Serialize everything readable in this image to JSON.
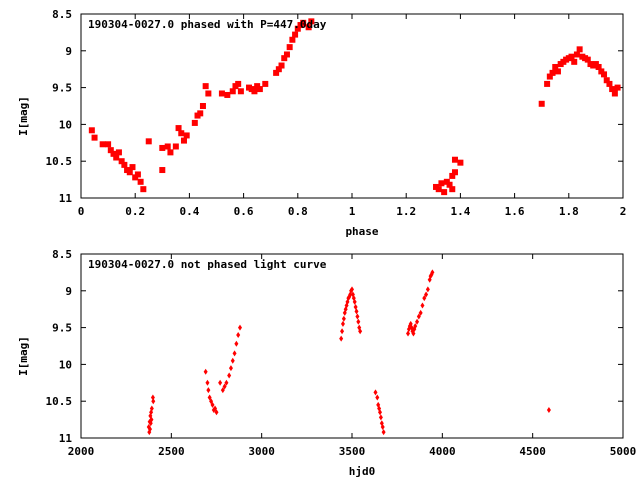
{
  "chart_data": [
    {
      "type": "scatter",
      "title": "190304-0027.0 phased with P=447.0day",
      "xlabel": "phase",
      "ylabel": "I[mag]",
      "xlim": [
        0,
        2
      ],
      "ylim": [
        11,
        8.5
      ],
      "y_inverted": true,
      "x_ticks": [
        "0",
        "0.2",
        "0.4",
        "0.6",
        "0.8",
        "1",
        "1.2",
        "1.4",
        "1.6",
        "1.8",
        "2"
      ],
      "y_ticks": [
        "8.5",
        "9",
        "9.5",
        "10",
        "10.5",
        "11"
      ],
      "grid": false,
      "marker_color": "#ff0000",
      "marker": "square",
      "series": [
        {
          "points": [
            [
              0.04,
              10.08
            ],
            [
              0.05,
              10.18
            ],
            [
              0.08,
              10.27
            ],
            [
              0.1,
              10.27
            ],
            [
              0.11,
              10.35
            ],
            [
              0.12,
              10.4
            ],
            [
              0.13,
              10.45
            ],
            [
              0.14,
              10.38
            ],
            [
              0.15,
              10.5
            ],
            [
              0.16,
              10.55
            ],
            [
              0.17,
              10.62
            ],
            [
              0.18,
              10.65
            ],
            [
              0.19,
              10.58
            ],
            [
              0.2,
              10.72
            ],
            [
              0.21,
              10.68
            ],
            [
              0.22,
              10.78
            ],
            [
              0.23,
              10.88
            ],
            [
              0.25,
              10.23
            ],
            [
              0.3,
              10.62
            ],
            [
              0.3,
              10.32
            ],
            [
              0.32,
              10.3
            ],
            [
              0.33,
              10.38
            ],
            [
              0.35,
              10.3
            ],
            [
              0.36,
              10.05
            ],
            [
              0.37,
              10.12
            ],
            [
              0.38,
              10.22
            ],
            [
              0.39,
              10.15
            ],
            [
              0.42,
              9.98
            ],
            [
              0.43,
              9.88
            ],
            [
              0.44,
              9.85
            ],
            [
              0.45,
              9.75
            ],
            [
              0.46,
              9.48
            ],
            [
              0.47,
              9.58
            ],
            [
              0.52,
              9.58
            ],
            [
              0.54,
              9.6
            ],
            [
              0.56,
              9.55
            ],
            [
              0.57,
              9.48
            ],
            [
              0.58,
              9.45
            ],
            [
              0.59,
              9.55
            ],
            [
              0.62,
              9.5
            ],
            [
              0.63,
              9.52
            ],
            [
              0.64,
              9.55
            ],
            [
              0.65,
              9.48
            ],
            [
              0.66,
              9.52
            ],
            [
              0.68,
              9.45
            ],
            [
              0.72,
              9.3
            ],
            [
              0.73,
              9.25
            ],
            [
              0.74,
              9.2
            ],
            [
              0.75,
              9.1
            ],
            [
              0.76,
              9.05
            ],
            [
              0.77,
              8.95
            ],
            [
              0.78,
              8.85
            ],
            [
              0.79,
              8.78
            ],
            [
              0.8,
              8.7
            ],
            [
              0.81,
              8.65
            ],
            [
              0.82,
              8.62
            ],
            [
              0.84,
              8.68
            ],
            [
              0.85,
              8.6
            ],
            [
              1.31,
              10.85
            ],
            [
              1.32,
              10.88
            ],
            [
              1.33,
              10.8
            ],
            [
              1.34,
              10.92
            ],
            [
              1.35,
              10.78
            ],
            [
              1.36,
              10.82
            ],
            [
              1.37,
              10.7
            ],
            [
              1.37,
              10.88
            ],
            [
              1.38,
              10.65
            ],
            [
              1.38,
              10.48
            ],
            [
              1.4,
              10.52
            ],
            [
              1.7,
              9.72
            ],
            [
              1.72,
              9.45
            ],
            [
              1.73,
              9.35
            ],
            [
              1.74,
              9.3
            ],
            [
              1.75,
              9.22
            ],
            [
              1.76,
              9.28
            ],
            [
              1.77,
              9.18
            ],
            [
              1.78,
              9.15
            ],
            [
              1.79,
              9.12
            ],
            [
              1.8,
              9.1
            ],
            [
              1.81,
              9.08
            ],
            [
              1.82,
              9.15
            ],
            [
              1.83,
              9.05
            ],
            [
              1.84,
              8.98
            ],
            [
              1.85,
              9.08
            ],
            [
              1.86,
              9.1
            ],
            [
              1.87,
              9.12
            ],
            [
              1.88,
              9.18
            ],
            [
              1.89,
              9.2
            ],
            [
              1.9,
              9.18
            ],
            [
              1.91,
              9.22
            ],
            [
              1.92,
              9.28
            ],
            [
              1.93,
              9.32
            ],
            [
              1.94,
              9.4
            ],
            [
              1.95,
              9.45
            ],
            [
              1.96,
              9.52
            ],
            [
              1.97,
              9.58
            ],
            [
              1.98,
              9.5
            ]
          ]
        }
      ]
    },
    {
      "type": "scatter",
      "title": "190304-0027.0 not phased light curve",
      "xlabel": "hjd0",
      "ylabel": "I[mag]",
      "xlim": [
        2000,
        5000
      ],
      "ylim": [
        11,
        8.5
      ],
      "y_inverted": true,
      "x_ticks": [
        "2000",
        "2500",
        "3000",
        "3500",
        "4000",
        "4500",
        "5000"
      ],
      "y_ticks": [
        "8.5",
        "9",
        "9.5",
        "10",
        "10.5",
        "11"
      ],
      "grid": false,
      "marker_color": "#ff0000",
      "marker": "diamond",
      "series": [
        {
          "points": [
            [
              2375,
              10.85
            ],
            [
              2378,
              10.92
            ],
            [
              2380,
              10.78
            ],
            [
              2382,
              10.88
            ],
            [
              2384,
              10.7
            ],
            [
              2386,
              10.8
            ],
            [
              2388,
              10.65
            ],
            [
              2390,
              10.75
            ],
            [
              2392,
              10.6
            ],
            [
              2398,
              10.45
            ],
            [
              2400,
              10.5
            ],
            [
              2690,
              10.1
            ],
            [
              2700,
              10.25
            ],
            [
              2705,
              10.35
            ],
            [
              2712,
              10.45
            ],
            [
              2720,
              10.5
            ],
            [
              2728,
              10.55
            ],
            [
              2735,
              10.62
            ],
            [
              2742,
              10.6
            ],
            [
              2750,
              10.65
            ],
            [
              2770,
              10.25
            ],
            [
              2785,
              10.35
            ],
            [
              2795,
              10.3
            ],
            [
              2805,
              10.25
            ],
            [
              2820,
              10.15
            ],
            [
              2830,
              10.05
            ],
            [
              2840,
              9.95
            ],
            [
              2850,
              9.85
            ],
            [
              2860,
              9.72
            ],
            [
              2870,
              9.6
            ],
            [
              2880,
              9.5
            ],
            [
              3440,
              9.65
            ],
            [
              3445,
              9.55
            ],
            [
              3450,
              9.45
            ],
            [
              3455,
              9.38
            ],
            [
              3460,
              9.3
            ],
            [
              3465,
              9.25
            ],
            [
              3470,
              9.2
            ],
            [
              3475,
              9.15
            ],
            [
              3480,
              9.1
            ],
            [
              3485,
              9.08
            ],
            [
              3490,
              9.05
            ],
            [
              3495,
              9.0
            ],
            [
              3500,
              8.98
            ],
            [
              3505,
              9.05
            ],
            [
              3510,
              9.1
            ],
            [
              3515,
              9.15
            ],
            [
              3520,
              9.22
            ],
            [
              3525,
              9.28
            ],
            [
              3530,
              9.35
            ],
            [
              3535,
              9.42
            ],
            [
              3540,
              9.5
            ],
            [
              3545,
              9.55
            ],
            [
              3630,
              10.38
            ],
            [
              3640,
              10.45
            ],
            [
              3645,
              10.55
            ],
            [
              3650,
              10.6
            ],
            [
              3655,
              10.65
            ],
            [
              3660,
              10.72
            ],
            [
              3665,
              10.8
            ],
            [
              3670,
              10.85
            ],
            [
              3675,
              10.92
            ],
            [
              3810,
              9.58
            ],
            [
              3815,
              9.52
            ],
            [
              3820,
              9.48
            ],
            [
              3825,
              9.45
            ],
            [
              3830,
              9.5
            ],
            [
              3835,
              9.55
            ],
            [
              3840,
              9.58
            ],
            [
              3845,
              9.52
            ],
            [
              3850,
              9.48
            ],
            [
              3860,
              9.42
            ],
            [
              3870,
              9.35
            ],
            [
              3880,
              9.3
            ],
            [
              3890,
              9.2
            ],
            [
              3900,
              9.1
            ],
            [
              3910,
              9.05
            ],
            [
              3920,
              8.98
            ],
            [
              3930,
              8.85
            ],
            [
              3935,
              8.8
            ],
            [
              3940,
              8.78
            ],
            [
              3945,
              8.75
            ],
            [
              4590,
              10.62
            ]
          ]
        }
      ]
    }
  ]
}
